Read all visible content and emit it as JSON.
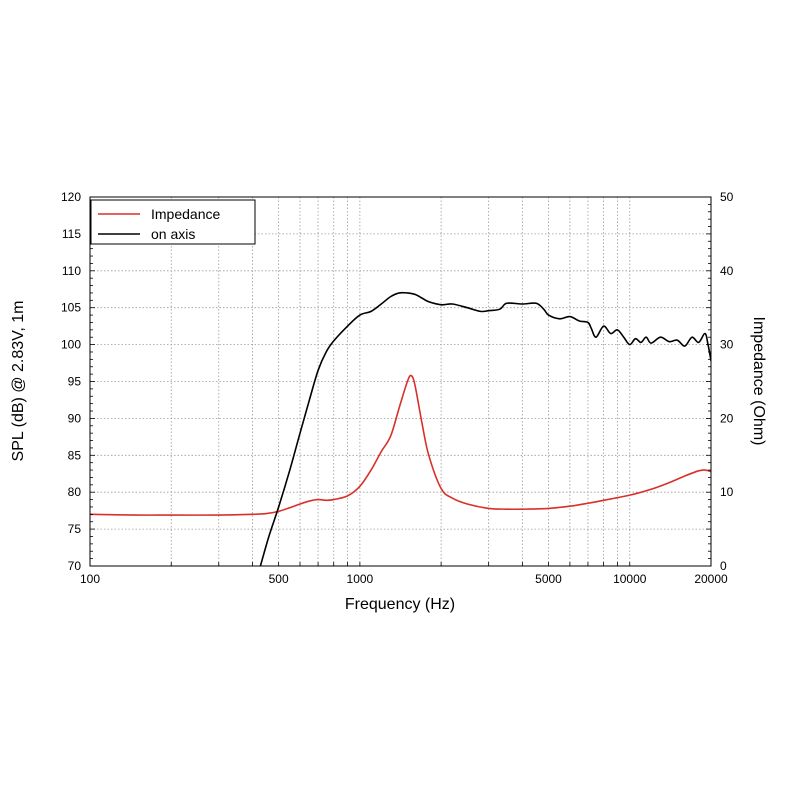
{
  "chart_data": {
    "type": "line",
    "xlabel": "Frequency (Hz)",
    "ylabel": "SPL (dB) @ 2.83V, 1m",
    "y2label": "Impedance (Ohm)",
    "x_scale": "log",
    "xlim": [
      100,
      20000
    ],
    "ylim": [
      70,
      120
    ],
    "y2lim": [
      0,
      50
    ],
    "x_ticks": [
      100,
      500,
      1000,
      5000,
      10000,
      20000
    ],
    "x_tick_labels": [
      "100",
      "500",
      "1000",
      "5000",
      "10000",
      "20000"
    ],
    "y_ticks": [
      70,
      75,
      80,
      85,
      90,
      95,
      100,
      105,
      110,
      115,
      120
    ],
    "y_tick_labels": [
      "70",
      "75",
      "80",
      "85",
      "90",
      "95",
      "100",
      "105",
      "110",
      "115",
      "120"
    ],
    "y2_ticks": [
      0,
      10,
      20,
      30,
      40,
      50
    ],
    "y2_tick_labels": [
      "0",
      "10",
      "20",
      "30",
      "40",
      "50"
    ],
    "grid": true,
    "legend_position": "top-left",
    "series": [
      {
        "name": "Impedance",
        "color": "#d9302a",
        "axis": "right",
        "x": [
          100,
          150,
          200,
          300,
          400,
          450,
          500,
          550,
          600,
          650,
          700,
          750,
          800,
          900,
          1000,
          1100,
          1200,
          1300,
          1400,
          1500,
          1550,
          1600,
          1700,
          1800,
          2000,
          2200,
          2500,
          3000,
          3500,
          4000,
          5000,
          6000,
          7000,
          8000,
          10000,
          12000,
          14000,
          16000,
          18000,
          19000,
          20000
        ],
        "y": [
          7.0,
          6.9,
          6.9,
          6.9,
          7.0,
          7.1,
          7.4,
          7.9,
          8.4,
          8.8,
          9.0,
          8.9,
          9.0,
          9.5,
          10.8,
          13.0,
          15.5,
          17.6,
          21.5,
          25.0,
          25.8,
          24.5,
          19.3,
          15.0,
          10.5,
          9.2,
          8.4,
          7.8,
          7.7,
          7.7,
          7.8,
          8.1,
          8.5,
          8.9,
          9.6,
          10.4,
          11.3,
          12.2,
          12.9,
          13.0,
          12.8
        ]
      },
      {
        "name": "on axis",
        "color": "#000000",
        "axis": "left",
        "x": [
          428,
          460,
          500,
          550,
          600,
          650,
          700,
          750,
          800,
          900,
          1000,
          1100,
          1200,
          1300,
          1400,
          1500,
          1600,
          1700,
          1800,
          2000,
          2200,
          2500,
          2800,
          3000,
          3300,
          3500,
          4000,
          4500,
          4800,
          5000,
          5500,
          6000,
          6500,
          7000,
          7200,
          7500,
          8000,
          8500,
          9000,
          9500,
          10000,
          10500,
          11000,
          11500,
          12000,
          13000,
          14000,
          15000,
          16000,
          17000,
          18000,
          19000,
          19500,
          20000
        ],
        "y": [
          70.0,
          74.0,
          78.0,
          83.0,
          88.0,
          92.5,
          96.5,
          99.0,
          100.5,
          102.5,
          104.0,
          104.5,
          105.5,
          106.5,
          107.0,
          107.0,
          106.8,
          106.3,
          105.8,
          105.4,
          105.5,
          105.0,
          104.5,
          104.6,
          104.8,
          105.6,
          105.5,
          105.6,
          104.8,
          104.0,
          103.5,
          103.8,
          103.2,
          103.0,
          102.2,
          101.0,
          102.5,
          101.5,
          102.0,
          101.0,
          100.0,
          100.8,
          100.3,
          101.0,
          100.2,
          101.0,
          100.4,
          100.6,
          99.8,
          101.0,
          100.3,
          101.5,
          100.0,
          97.8
        ]
      }
    ]
  }
}
